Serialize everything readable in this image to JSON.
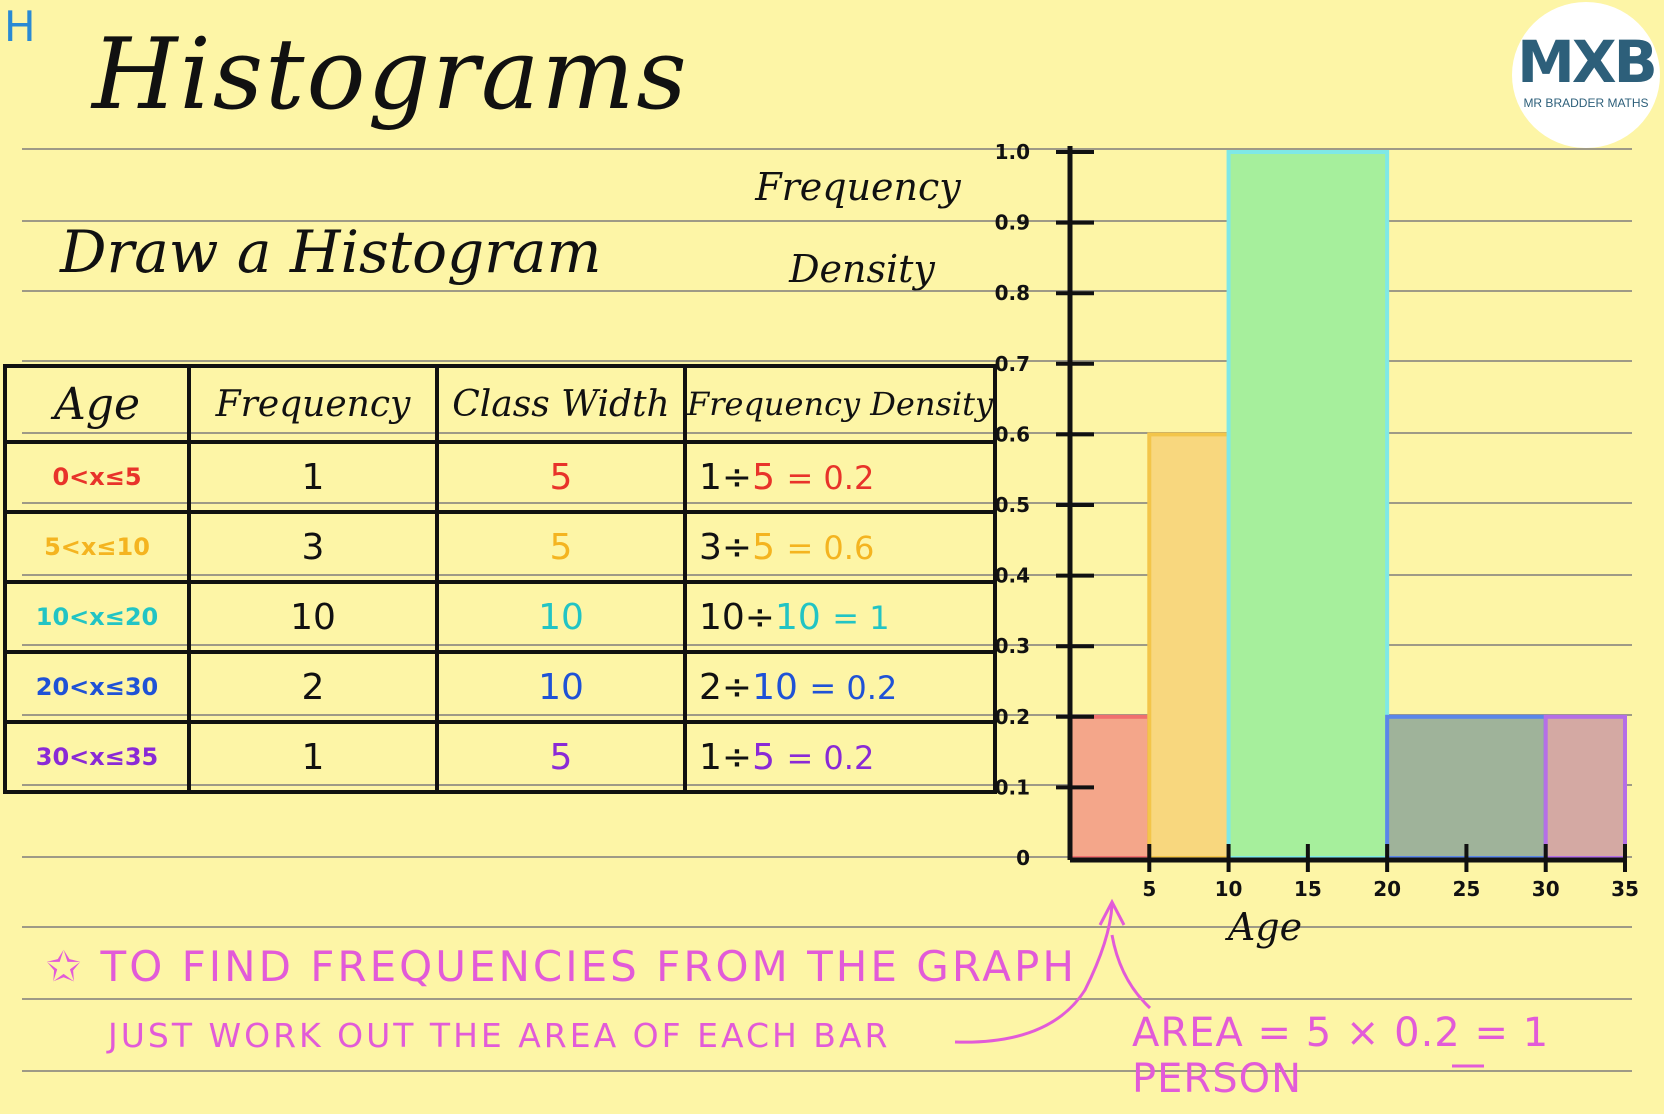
{
  "corner_tag": "H",
  "title": "Histograms",
  "subtitle": "Draw a Histogram",
  "logo": {
    "mark": "MXB",
    "text": "MR BRADDER MATHS"
  },
  "table": {
    "headers": [
      "Age",
      "Frequency",
      "Class Width",
      "Frequency Density"
    ],
    "rows": [
      {
        "age": "0<x≤5",
        "frequency": "1",
        "class_width": "5",
        "fd_expr": "1÷",
        "fd_div": "5",
        "fd_result": "= 0.2",
        "color": "#e8332a"
      },
      {
        "age": "5<x≤10",
        "frequency": "3",
        "class_width": "5",
        "fd_expr": "3÷",
        "fd_div": "5",
        "fd_result": "= 0.6",
        "color": "#f4b420"
      },
      {
        "age": "10<x≤20",
        "frequency": "10",
        "class_width": "10",
        "fd_expr": "10÷",
        "fd_div": "10",
        "fd_result": "= 1",
        "color": "#22c4c4"
      },
      {
        "age": "20<x≤30",
        "frequency": "2",
        "class_width": "10",
        "fd_expr": "2÷",
        "fd_div": "10",
        "fd_result": "= 0.2",
        "color": "#1f52d6"
      },
      {
        "age": "30<x≤35",
        "frequency": "1",
        "class_width": "5",
        "fd_expr": "1÷",
        "fd_div": "5",
        "fd_result": "= 0.2",
        "color": "#8a2ad6"
      }
    ]
  },
  "chart_data": {
    "type": "bar",
    "ylabel_line1": "Frequency",
    "ylabel_line2": "Density",
    "xlabel": "Age",
    "xlim": [
      0,
      35
    ],
    "ylim": [
      0,
      1.0
    ],
    "x_ticks": [
      "5",
      "10",
      "15",
      "20",
      "25",
      "30",
      "35"
    ],
    "x_tick_values": [
      5,
      10,
      15,
      20,
      25,
      30,
      35
    ],
    "y_ticks": [
      "0",
      "0.1",
      "0.2",
      "0.3",
      "0.4",
      "0.5",
      "0.6",
      "0.7",
      "0.8",
      "0.9",
      "1.0"
    ],
    "y_tick_values": [
      0,
      0.1,
      0.2,
      0.3,
      0.4,
      0.5,
      0.6,
      0.7,
      0.8,
      0.9,
      1.0
    ],
    "bars": [
      {
        "from": 0,
        "to": 5,
        "value": 0.2,
        "fill": "#f4a68a",
        "stroke": "#f06f6f"
      },
      {
        "from": 5,
        "to": 10,
        "value": 0.6,
        "fill": "#f8d77e",
        "stroke": "#f3c54a"
      },
      {
        "from": 10,
        "to": 20,
        "value": 1.0,
        "fill": "#a6ef9c",
        "stroke": "#7fe8e6"
      },
      {
        "from": 20,
        "to": 30,
        "value": 0.2,
        "fill": "#9fb39a",
        "stroke": "#5b86e8"
      },
      {
        "from": 30,
        "to": 35,
        "value": 0.2,
        "fill": "#d4a9a3",
        "stroke": "#b56fe6"
      }
    ]
  },
  "notes": {
    "line1": "TO FIND FREQUENCIES FROM THE GRAPH",
    "line2": "JUST WORK OUT THE AREA OF EACH BAR",
    "area": "AREA = 5 × 0.2 = 1 PERSON"
  },
  "colors": {
    "paper": "#fdf5a6",
    "ruling": "#9e9a86",
    "note": "#e25bd8"
  }
}
